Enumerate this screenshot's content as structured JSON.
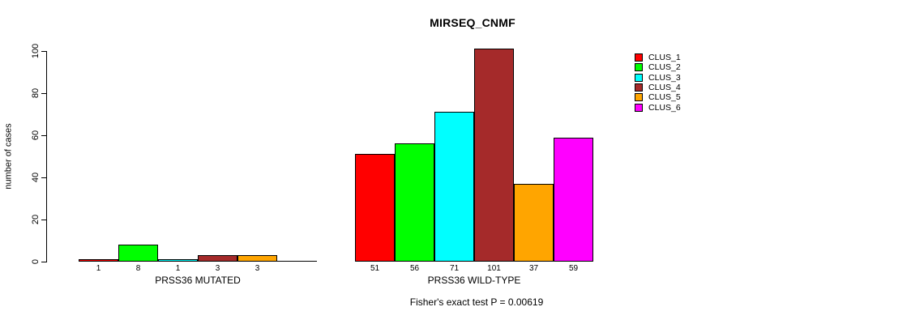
{
  "chart_data": {
    "type": "bar",
    "title": "MIRSEQ_CNMF",
    "ylabel": "number of cases",
    "ylim": [
      0,
      100
    ],
    "yticks": [
      0,
      20,
      40,
      60,
      80,
      100
    ],
    "grid": false,
    "legend_position": "top-right",
    "annotation": "Fisher's exact test P = 0.00619",
    "clusters": [
      "CLUS_1",
      "CLUS_2",
      "CLUS_3",
      "CLUS_4",
      "CLUS_5",
      "CLUS_6"
    ],
    "colors": [
      "#FF0000",
      "#00FF00",
      "#00FFFF",
      "#A52A2A",
      "#FFA500",
      "#FF00FF"
    ],
    "groups": [
      {
        "label": "PRSS36 MUTATED",
        "values": [
          1,
          8,
          1,
          3,
          3,
          0
        ]
      },
      {
        "label": "PRSS36 WILD-TYPE",
        "values": [
          51,
          56,
          71,
          101,
          37,
          59
        ]
      }
    ]
  }
}
